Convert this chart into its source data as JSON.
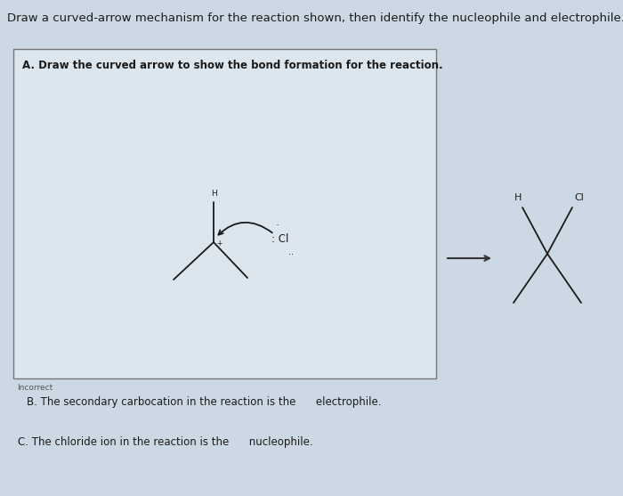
{
  "bg_color": "#ccd9e4",
  "title_text": "Draw a curved-arrow mechanism for the reaction shown, then identify the nucleophile and electrophile.",
  "title_fontsize": 9.5,
  "box_facecolor": "#dce6ee",
  "box_edgecolor": "#777777",
  "section_a_text": "A. Draw the curved arrow to show the bond formation for the reaction.",
  "section_a_fontsize": 8.5,
  "incorrect_text": "Incorrect",
  "incorrect_fontsize": 6.5,
  "section_b_text": "B. The secondary carbocation in the reaction is the      electrophile.",
  "section_b_fontsize": 8.5,
  "section_c_text": "C. The chloride ion in the reaction is the      nucleophile.",
  "section_c_fontsize": 8.5,
  "arrow_color": "#1a1a1a",
  "line_color": "#1a1a1a",
  "text_color": "#1a1a1a"
}
